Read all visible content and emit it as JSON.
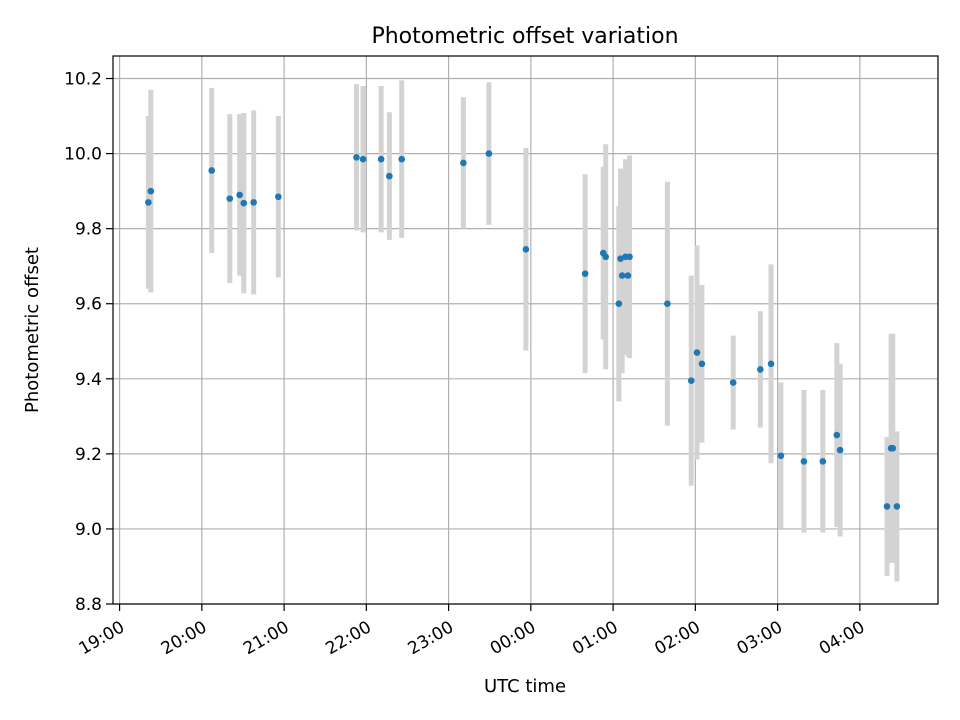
{
  "chart_data": {
    "type": "scatter",
    "title": "Photometric offset variation",
    "xlabel": "UTC time",
    "ylabel": "Photometric offset",
    "ylim": [
      8.8,
      10.26
    ],
    "xlim_hours": [
      18.92,
      28.95
    ],
    "grid": true,
    "x_tick_hours": [
      19,
      20,
      21,
      22,
      23,
      24,
      25,
      26,
      27,
      28
    ],
    "x_tick_labels": [
      "19:00",
      "20:00",
      "21:00",
      "22:00",
      "23:00",
      "00:00",
      "01:00",
      "02:00",
      "03:00",
      "04:00"
    ],
    "y_ticks": [
      8.8,
      9.0,
      9.2,
      9.4,
      9.6,
      9.8,
      10.0,
      10.2
    ],
    "y_tick_labels": [
      "8.8",
      "9.0",
      "9.2",
      "9.4",
      "9.6",
      "9.8",
      "10.0",
      "10.2"
    ],
    "colors": {
      "point": "#1f77b4",
      "errorbar": "#d3d3d3",
      "grid": "#b0b0b0"
    },
    "series": [
      {
        "x_hours": [
          19.35,
          19.38,
          20.12,
          20.34,
          20.46,
          20.51,
          20.63,
          20.93,
          21.88,
          21.96,
          22.18,
          22.28,
          22.43,
          23.18,
          23.49,
          23.94,
          24.66,
          24.88,
          24.91,
          25.07,
          25.09,
          25.11,
          25.15,
          25.18,
          25.2,
          25.66,
          25.95,
          26.02,
          26.08,
          26.46,
          26.79,
          26.92,
          27.04,
          27.32,
          27.55,
          27.72,
          27.76,
          28.33,
          28.38,
          28.4,
          28.45
        ],
        "y": [
          9.87,
          9.9,
          9.955,
          9.88,
          9.89,
          9.868,
          9.87,
          9.885,
          9.99,
          9.985,
          9.985,
          9.94,
          9.985,
          9.975,
          10.0,
          9.745,
          9.68,
          9.735,
          9.725,
          9.6,
          9.72,
          9.675,
          9.725,
          9.675,
          9.725,
          9.6,
          9.395,
          9.47,
          9.44,
          9.39,
          9.425,
          9.44,
          9.195,
          9.18,
          9.18,
          9.25,
          9.21,
          9.06,
          9.215,
          9.215,
          9.06
        ],
        "yerr": [
          0.23,
          0.27,
          0.22,
          0.225,
          0.215,
          0.24,
          0.245,
          0.215,
          0.195,
          0.195,
          0.195,
          0.17,
          0.21,
          0.175,
          0.19,
          0.27,
          0.265,
          0.23,
          0.3,
          0.26,
          0.24,
          0.26,
          0.26,
          0.215,
          0.27,
          0.325,
          0.28,
          0.285,
          0.21,
          0.125,
          0.155,
          0.265,
          0.195,
          0.19,
          0.19,
          0.245,
          0.23,
          0.185,
          0.305,
          0.305,
          0.2
        ]
      }
    ]
  }
}
